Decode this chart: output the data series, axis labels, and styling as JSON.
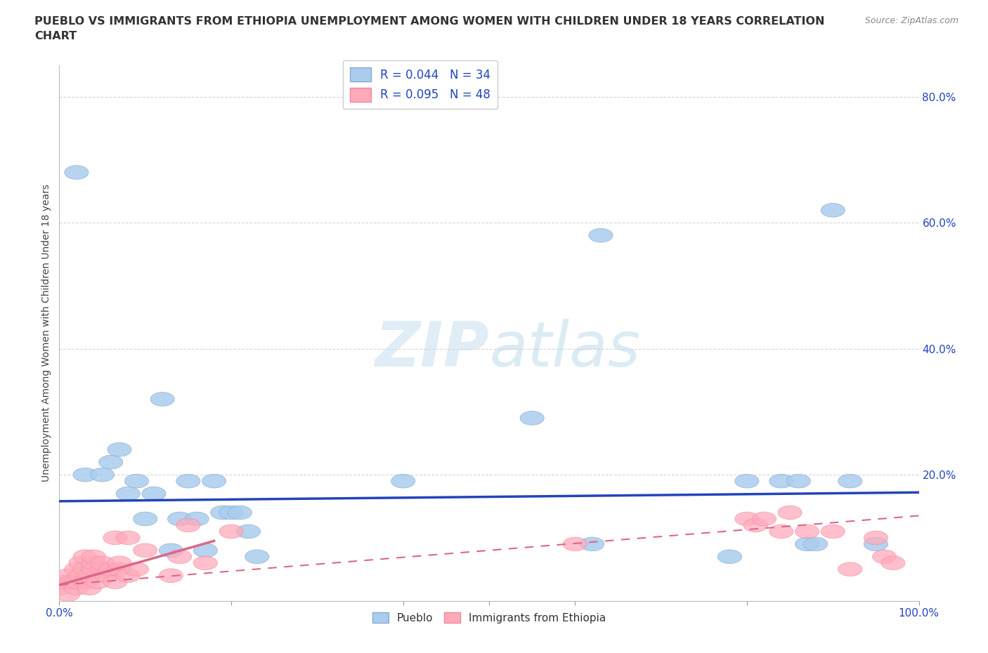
{
  "title_line1": "PUEBLO VS IMMIGRANTS FROM ETHIOPIA UNEMPLOYMENT AMONG WOMEN WITH CHILDREN UNDER 18 YEARS CORRELATION",
  "title_line2": "CHART",
  "source": "Source: ZipAtlas.com",
  "ylabel": "Unemployment Among Women with Children Under 18 years",
  "xlim": [
    0,
    1.0
  ],
  "ylim": [
    0,
    0.85
  ],
  "xticks": [
    0.0,
    0.2,
    0.4,
    0.5,
    0.6,
    0.8,
    1.0
  ],
  "xticklabels": [
    "0.0%",
    "",
    "",
    "",
    "",
    "",
    "100.0%"
  ],
  "yticks": [
    0.0,
    0.2,
    0.4,
    0.6,
    0.8
  ],
  "yticklabels": [
    "",
    "20.0%",
    "40.0%",
    "60.0%",
    "80.0%"
  ],
  "blue_R": "0.044",
  "blue_N": "34",
  "pink_R": "0.095",
  "pink_N": "48",
  "blue_marker_color": "#aaccee",
  "blue_edge_color": "#88aacc",
  "pink_marker_color": "#ffaabb",
  "pink_edge_color": "#ee8899",
  "blue_line_color": "#2244bb",
  "pink_line_color": "#dd6688",
  "grid_color": "#cccccc",
  "watermark_color": "#d8eef8",
  "blue_scatter_x": [
    0.02,
    0.03,
    0.05,
    0.06,
    0.07,
    0.08,
    0.09,
    0.1,
    0.11,
    0.12,
    0.13,
    0.14,
    0.15,
    0.16,
    0.17,
    0.18,
    0.19,
    0.2,
    0.21,
    0.22,
    0.23,
    0.4,
    0.55,
    0.62,
    0.63,
    0.78,
    0.8,
    0.84,
    0.86,
    0.87,
    0.88,
    0.9,
    0.92,
    0.95
  ],
  "blue_scatter_y": [
    0.68,
    0.2,
    0.2,
    0.22,
    0.24,
    0.17,
    0.19,
    0.13,
    0.17,
    0.32,
    0.08,
    0.13,
    0.19,
    0.13,
    0.08,
    0.19,
    0.14,
    0.14,
    0.14,
    0.11,
    0.07,
    0.19,
    0.29,
    0.09,
    0.58,
    0.07,
    0.19,
    0.19,
    0.19,
    0.09,
    0.09,
    0.62,
    0.19,
    0.09
  ],
  "pink_scatter_x": [
    0.0,
    0.005,
    0.01,
    0.01,
    0.015,
    0.02,
    0.02,
    0.02,
    0.025,
    0.025,
    0.03,
    0.03,
    0.03,
    0.035,
    0.035,
    0.04,
    0.04,
    0.04,
    0.045,
    0.05,
    0.05,
    0.055,
    0.06,
    0.065,
    0.065,
    0.07,
    0.07,
    0.08,
    0.08,
    0.09,
    0.1,
    0.13,
    0.14,
    0.15,
    0.17,
    0.2,
    0.6,
    0.8,
    0.81,
    0.82,
    0.84,
    0.85,
    0.87,
    0.9,
    0.92,
    0.95,
    0.96,
    0.97
  ],
  "pink_scatter_y": [
    0.02,
    0.03,
    0.01,
    0.04,
    0.03,
    0.02,
    0.03,
    0.05,
    0.04,
    0.06,
    0.03,
    0.05,
    0.07,
    0.02,
    0.04,
    0.05,
    0.06,
    0.07,
    0.03,
    0.05,
    0.06,
    0.04,
    0.05,
    0.03,
    0.1,
    0.05,
    0.06,
    0.04,
    0.1,
    0.05,
    0.08,
    0.04,
    0.07,
    0.12,
    0.06,
    0.11,
    0.09,
    0.13,
    0.12,
    0.13,
    0.11,
    0.14,
    0.11,
    0.11,
    0.05,
    0.1,
    0.07,
    0.06
  ],
  "blue_trendline": [
    0.0,
    1.0,
    0.158,
    0.172
  ],
  "pink_solid_trendline": [
    0.0,
    0.18,
    0.025,
    0.095
  ],
  "pink_dashed_trendline": [
    0.0,
    1.0,
    0.025,
    0.135
  ]
}
